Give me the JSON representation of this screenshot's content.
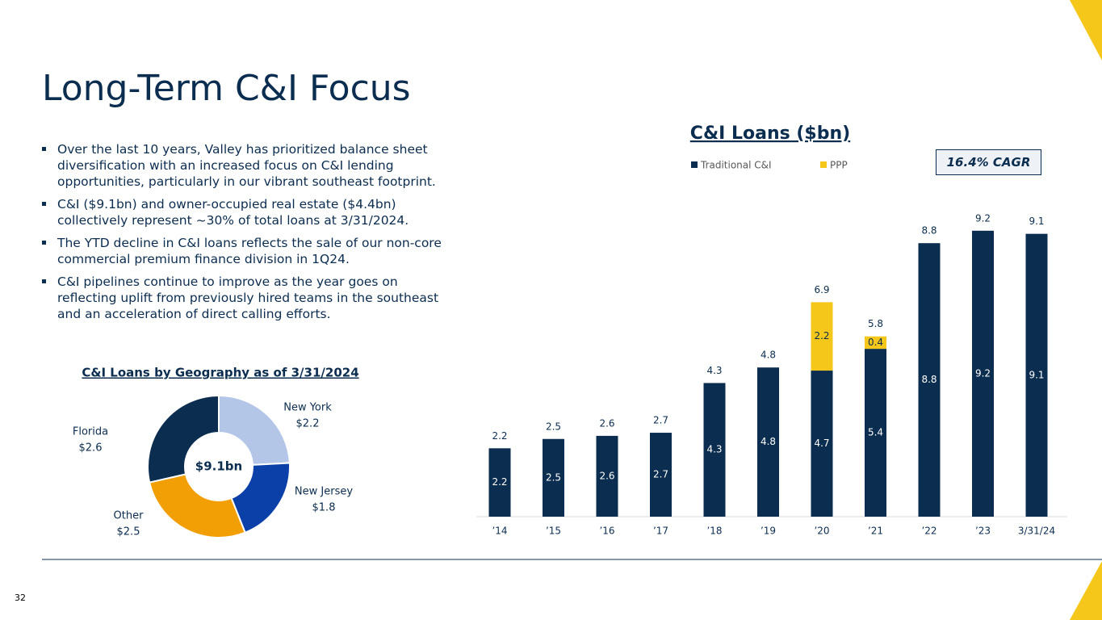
{
  "slide": {
    "title": "Long-Term C&I Focus",
    "bullets": [
      "Over the last 10 years, Valley has prioritized balance sheet diversification with an increased focus on C&I lending opportunities, particularly in our vibrant southeast footprint.",
      "C&I ($9.1bn) and owner-occupied real estate ($4.4bn) collectively represent ~30% of total loans at 3/31/2024.",
      "The YTD decline in C&I loans reflects the sale of our non-core commercial premium finance division in 1Q24.",
      "C&I pipelines continue to improve as the year goes on reflecting uplift from previously hired teams in the southeast and an acceleration of direct calling efforts."
    ],
    "callout": "16.4% CAGR",
    "page_number": "32"
  },
  "chart_data": [
    {
      "type": "stacked_bar",
      "title": "C&I Loans ($bn)",
      "categories": [
        "’14",
        "’15",
        "’16",
        "’17",
        "’18",
        "’19",
        "’20",
        "’21",
        "’22",
        "’23",
        "3/31/24"
      ],
      "series": [
        {
          "name": "Traditional C&I",
          "color": "#0b2d4f",
          "values": [
            2.2,
            2.5,
            2.6,
            2.7,
            4.3,
            4.8,
            4.7,
            5.4,
            8.8,
            9.2,
            9.1
          ]
        },
        {
          "name": "PPP",
          "color": "#f5c71a",
          "values": [
            null,
            null,
            null,
            null,
            null,
            null,
            2.2,
            0.4,
            null,
            null,
            null
          ]
        }
      ],
      "totals": [
        2.2,
        2.5,
        2.6,
        2.7,
        4.3,
        4.8,
        6.9,
        5.8,
        8.8,
        9.2,
        9.1
      ],
      "legend": "top"
    },
    {
      "type": "donut",
      "title": "C&I Loans by Geography as of 3/31/2024",
      "center_label": "$9.1bn",
      "categories": [
        "New York",
        "New Jersey",
        "Other",
        "Florida"
      ],
      "values": [
        2.2,
        1.8,
        2.5,
        2.6
      ],
      "value_labels": [
        "$2.2",
        "$1.8",
        "$2.5",
        "$2.6"
      ],
      "colors": [
        "#b4c6e7",
        "#0b40a8",
        "#f29f05",
        "#0b2d4f"
      ]
    }
  ]
}
